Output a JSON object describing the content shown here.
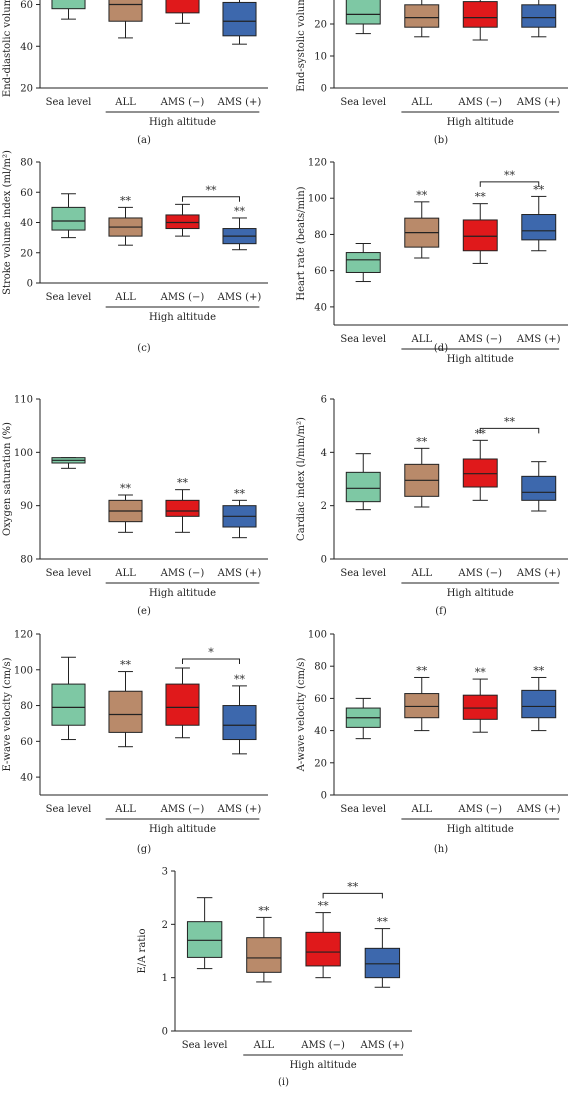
{
  "colors": {
    "sea_level": "#7ec8a4",
    "all": "#b98a6a",
    "ams_neg": "#e0191b",
    "ams_pos": "#3d68ad",
    "axis": "#222222"
  },
  "group_label": "High altitude",
  "chart_data": [
    {
      "type": "box",
      "panel": "(a)",
      "ylabel": "End-diastolic volume",
      "ylim": [
        20,
        66
      ],
      "yticks": [
        20,
        40,
        60
      ],
      "categories": [
        "Sea level",
        "ALL",
        "AMS (−)",
        "AMS (+)"
      ],
      "boxes": [
        {
          "min": 53,
          "q1": 58,
          "median": 66,
          "q3": 70,
          "max": 70,
          "sig": ""
        },
        {
          "min": 44,
          "q1": 52,
          "median": 60,
          "q3": 66,
          "max": 70,
          "sig": ""
        },
        {
          "min": 51,
          "q1": 56,
          "median": 63,
          "q3": 70,
          "max": 70,
          "sig": ""
        },
        {
          "min": 41,
          "q1": 45,
          "median": 52,
          "q3": 61,
          "max": 66,
          "sig": ""
        }
      ],
      "bracket": null
    },
    {
      "type": "box",
      "panel": "(b)",
      "ylabel": "End-systolic volum",
      "ylim": [
        0,
        30
      ],
      "yticks": [
        0,
        10,
        20
      ],
      "categories": [
        "Sea level",
        "ALL",
        "AMS (−)",
        "AMS (+)"
      ],
      "boxes": [
        {
          "min": 17,
          "q1": 20,
          "median": 23,
          "q3": 30,
          "max": 30,
          "sig": ""
        },
        {
          "min": 16,
          "q1": 19,
          "median": 22,
          "q3": 26,
          "max": 30,
          "sig": ""
        },
        {
          "min": 15,
          "q1": 19,
          "median": 22,
          "q3": 27,
          "max": 30,
          "sig": ""
        },
        {
          "min": 16,
          "q1": 19,
          "median": 22,
          "q3": 26,
          "max": 28,
          "sig": ""
        }
      ],
      "bracket": null
    },
    {
      "type": "box",
      "panel": "(c)",
      "ylabel": "Stroke volume index (ml/m²)",
      "ylim": [
        0,
        80
      ],
      "yticks": [
        0,
        20,
        40,
        60,
        80
      ],
      "categories": [
        "Sea level",
        "ALL",
        "AMS (−)",
        "AMS (+)"
      ],
      "boxes": [
        {
          "min": 30,
          "q1": 35,
          "median": 41,
          "q3": 50,
          "max": 59,
          "sig": ""
        },
        {
          "min": 25,
          "q1": 31,
          "median": 37,
          "q3": 43,
          "max": 50,
          "sig": "**"
        },
        {
          "min": 31,
          "q1": 36,
          "median": 40,
          "q3": 45,
          "max": 52,
          "sig": ""
        },
        {
          "min": 22,
          "q1": 26,
          "median": 31,
          "q3": 36,
          "max": 43,
          "sig": "**"
        }
      ],
      "bracket": {
        "from": 2,
        "to": 3,
        "y": 57,
        "label": "**"
      }
    },
    {
      "type": "box",
      "panel": "(d)",
      "ylabel": "Heart rate (beats/min)",
      "ylim": [
        30,
        120
      ],
      "yticks": [
        40,
        60,
        80,
        100,
        120
      ],
      "categories": [
        "Sea level",
        "ALL",
        "AMS (−)",
        "AMS (+)"
      ],
      "boxes": [
        {
          "min": 54,
          "q1": 59,
          "median": 66,
          "q3": 70,
          "max": 75,
          "sig": ""
        },
        {
          "min": 67,
          "q1": 73,
          "median": 81,
          "q3": 89,
          "max": 98,
          "sig": "**"
        },
        {
          "min": 64,
          "q1": 71,
          "median": 79,
          "q3": 88,
          "max": 97,
          "sig": "**"
        },
        {
          "min": 71,
          "q1": 77,
          "median": 82,
          "q3": 91,
          "max": 101,
          "sig": "**"
        }
      ],
      "bracket": {
        "from": 2,
        "to": 3,
        "y": 109,
        "label": "**"
      }
    },
    {
      "type": "box",
      "panel": "(e)",
      "ylabel": "Oxygen saturation (%)",
      "ylim": [
        80,
        110
      ],
      "yticks": [
        80,
        90,
        100,
        110
      ],
      "categories": [
        "Sea level",
        "ALL",
        "AMS (−)",
        "AMS (+)"
      ],
      "boxes": [
        {
          "min": 97,
          "q1": 98,
          "median": 98.5,
          "q3": 99,
          "max": 99,
          "sig": ""
        },
        {
          "min": 85,
          "q1": 87,
          "median": 89,
          "q3": 91,
          "max": 92,
          "sig": "**"
        },
        {
          "min": 85,
          "q1": 88,
          "median": 89,
          "q3": 91,
          "max": 93,
          "sig": "**"
        },
        {
          "min": 84,
          "q1": 86,
          "median": 88,
          "q3": 90,
          "max": 91,
          "sig": "**"
        }
      ],
      "bracket": null
    },
    {
      "type": "box",
      "panel": "(f)",
      "ylabel": "Cardiac index (l/min/m²)",
      "ylim": [
        0,
        6
      ],
      "yticks": [
        0,
        2,
        4,
        6
      ],
      "categories": [
        "Sea level",
        "ALL",
        "AMS (−)",
        "AMS (+)"
      ],
      "boxes": [
        {
          "min": 1.85,
          "q1": 2.15,
          "median": 2.65,
          "q3": 3.25,
          "max": 3.95,
          "sig": ""
        },
        {
          "min": 1.95,
          "q1": 2.35,
          "median": 2.95,
          "q3": 3.55,
          "max": 4.15,
          "sig": "**"
        },
        {
          "min": 2.2,
          "q1": 2.7,
          "median": 3.2,
          "q3": 3.75,
          "max": 4.45,
          "sig": "**"
        },
        {
          "min": 1.8,
          "q1": 2.2,
          "median": 2.5,
          "q3": 3.1,
          "max": 3.65,
          "sig": ""
        }
      ],
      "bracket": {
        "from": 2,
        "to": 3,
        "y": 4.9,
        "label": "**"
      }
    },
    {
      "type": "box",
      "panel": "(g)",
      "ylabel": "E-wave velocity (cm/s)",
      "ylim": [
        30,
        120
      ],
      "yticks": [
        40,
        60,
        80,
        100,
        120
      ],
      "categories": [
        "Sea level",
        "ALL",
        "AMS (−)",
        "AMS (+)"
      ],
      "boxes": [
        {
          "min": 61,
          "q1": 69,
          "median": 79,
          "q3": 92,
          "max": 107,
          "sig": ""
        },
        {
          "min": 57,
          "q1": 65,
          "median": 75,
          "q3": 88,
          "max": 99,
          "sig": "**"
        },
        {
          "min": 62,
          "q1": 69,
          "median": 79,
          "q3": 92,
          "max": 101,
          "sig": ""
        },
        {
          "min": 53,
          "q1": 61,
          "median": 69,
          "q3": 80,
          "max": 91,
          "sig": "**"
        }
      ],
      "bracket": {
        "from": 2,
        "to": 3,
        "y": 106,
        "label": "*"
      }
    },
    {
      "type": "box",
      "panel": "(h)",
      "ylabel": "A-wave velocity (cm/s)",
      "ylim": [
        0,
        100
      ],
      "yticks": [
        0,
        20,
        40,
        60,
        80,
        100
      ],
      "categories": [
        "Sea level",
        "ALL",
        "AMS (−)",
        "AMS (+)"
      ],
      "boxes": [
        {
          "min": 35,
          "q1": 42,
          "median": 48,
          "q3": 54,
          "max": 60,
          "sig": ""
        },
        {
          "min": 40,
          "q1": 48,
          "median": 55,
          "q3": 63,
          "max": 73,
          "sig": "**"
        },
        {
          "min": 39,
          "q1": 47,
          "median": 54,
          "q3": 62,
          "max": 72,
          "sig": "**"
        },
        {
          "min": 40,
          "q1": 48,
          "median": 55,
          "q3": 65,
          "max": 73,
          "sig": "**"
        }
      ],
      "bracket": null
    },
    {
      "type": "box",
      "panel": "(i)",
      "ylabel": "E/A ratio",
      "ylim": [
        0,
        3
      ],
      "yticks": [
        0,
        1,
        2,
        3
      ],
      "categories": [
        "Sea level",
        "ALL",
        "AMS (−)",
        "AMS (+)"
      ],
      "boxes": [
        {
          "min": 1.17,
          "q1": 1.38,
          "median": 1.7,
          "q3": 2.05,
          "max": 2.5,
          "sig": ""
        },
        {
          "min": 0.92,
          "q1": 1.1,
          "median": 1.37,
          "q3": 1.75,
          "max": 2.13,
          "sig": "**"
        },
        {
          "min": 1.0,
          "q1": 1.22,
          "median": 1.48,
          "q3": 1.85,
          "max": 2.22,
          "sig": "**"
        },
        {
          "min": 0.82,
          "q1": 1.0,
          "median": 1.26,
          "q3": 1.55,
          "max": 1.92,
          "sig": "**"
        }
      ],
      "bracket": {
        "from": 2,
        "to": 3,
        "y": 2.58,
        "label": "**"
      }
    }
  ]
}
